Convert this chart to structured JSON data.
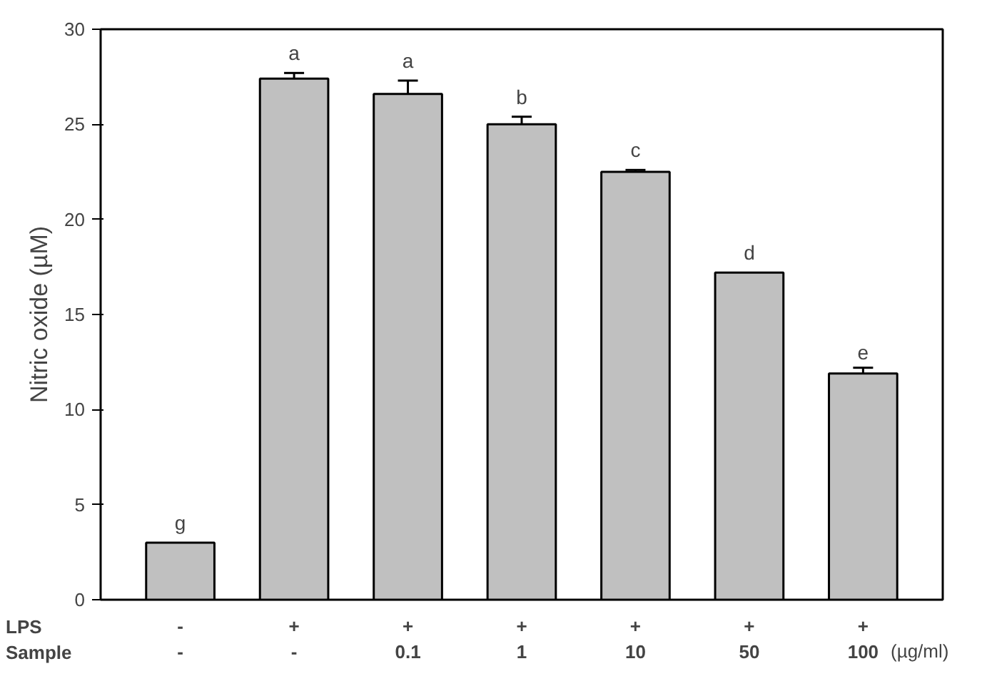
{
  "chart_data": {
    "type": "bar",
    "ylabel": "Nitric oxide (µM)",
    "categories": [
      "-\n-",
      "+\n-",
      "+\n0.1",
      "+\n1",
      "+\n10",
      "+\n50",
      "+\n100"
    ],
    "values": [
      3.0,
      27.4,
      26.6,
      25.0,
      22.5,
      17.2,
      11.9
    ],
    "errors": [
      null,
      0.3,
      0.7,
      0.4,
      0.1,
      null,
      0.3
    ],
    "value_labels": [
      "g",
      "a",
      "a",
      "b",
      "c",
      "d",
      "e"
    ],
    "color": "#c0c0c0",
    "ylim": [
      0,
      30
    ],
    "yticks": [
      0,
      5,
      10,
      15,
      20,
      25,
      30
    ],
    "grid": false,
    "annotations": [
      "LPS",
      "Sample",
      "(µg/ml)"
    ]
  }
}
